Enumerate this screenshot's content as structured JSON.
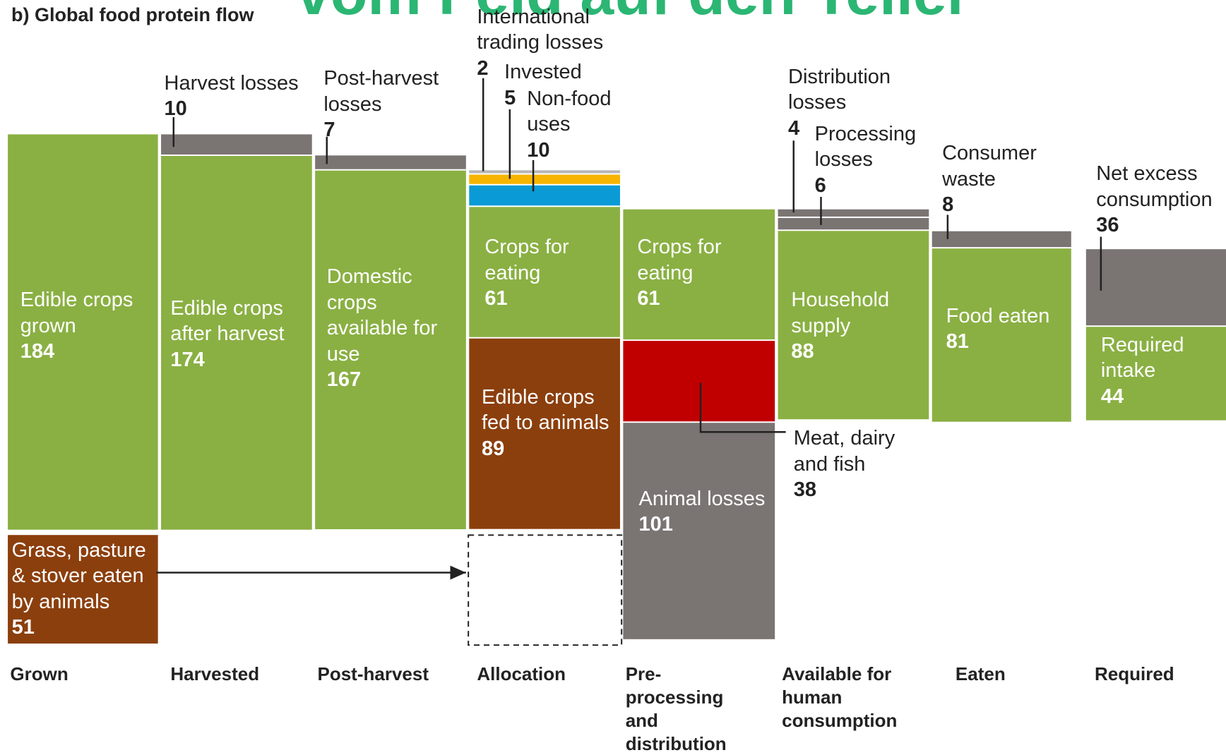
{
  "title": "b) Global food protein flow",
  "banner": "vom Feld auf den Teller",
  "stages": [
    {
      "name": "Grown",
      "blocks": [
        {
          "label": "Edible crops grown",
          "value": 184,
          "color": "#8ab043"
        },
        {
          "label": "Grass, pasture & stover eaten by animals",
          "value": 51,
          "color": "#8b3f0d"
        }
      ]
    },
    {
      "name": "Harvested",
      "blocks": [
        {
          "label": "Harvest losses",
          "value": 10,
          "color": "#7a7472"
        },
        {
          "label": "Edible crops after harvest",
          "value": 174,
          "color": "#8ab043"
        }
      ]
    },
    {
      "name": "Post-harvest",
      "blocks": [
        {
          "label": "Post-harvest losses",
          "value": 7,
          "color": "#7a7472"
        },
        {
          "label": "Domestic crops available for use",
          "value": 167,
          "color": "#8ab043"
        }
      ]
    },
    {
      "name": "Allocation",
      "blocks": [
        {
          "label": "International trading losses",
          "value": 2,
          "color": "#b5b5b5"
        },
        {
          "label": "Invested",
          "value": 5,
          "color": "#f7b500"
        },
        {
          "label": "Non-food uses",
          "value": 10,
          "color": "#0a9bd6"
        },
        {
          "label": "Crops for eating",
          "value": 61,
          "color": "#8ab043"
        },
        {
          "label": "Edible crops fed to animals",
          "value": 89,
          "color": "#8b3f0d"
        }
      ]
    },
    {
      "name": "Pre-processing and distribution",
      "blocks": [
        {
          "label": "Crops for eating",
          "value": 61,
          "color": "#8ab043"
        },
        {
          "label": "Meat, dairy and fish",
          "value": 38,
          "color": "#c00000"
        },
        {
          "label": "Animal losses",
          "value": 101,
          "color": "#7a7472"
        }
      ]
    },
    {
      "name": "Available for human consumption",
      "blocks": [
        {
          "label": "Distribution losses",
          "value": 4,
          "color": "#7a7472"
        },
        {
          "label": "Processing losses",
          "value": 6,
          "color": "#7a7472"
        },
        {
          "label": "Household supply",
          "value": 88,
          "color": "#8ab043"
        }
      ]
    },
    {
      "name": "Eaten",
      "blocks": [
        {
          "label": "Consumer waste",
          "value": 8,
          "color": "#7a7472"
        },
        {
          "label": "Food eaten",
          "value": 81,
          "color": "#8ab043"
        }
      ]
    },
    {
      "name": "Required",
      "blocks": [
        {
          "label": "Net excess consumption",
          "value": 36,
          "color": "#7a7472"
        },
        {
          "label": "Required intake",
          "value": 44,
          "color": "#8ab043"
        }
      ]
    }
  ]
}
